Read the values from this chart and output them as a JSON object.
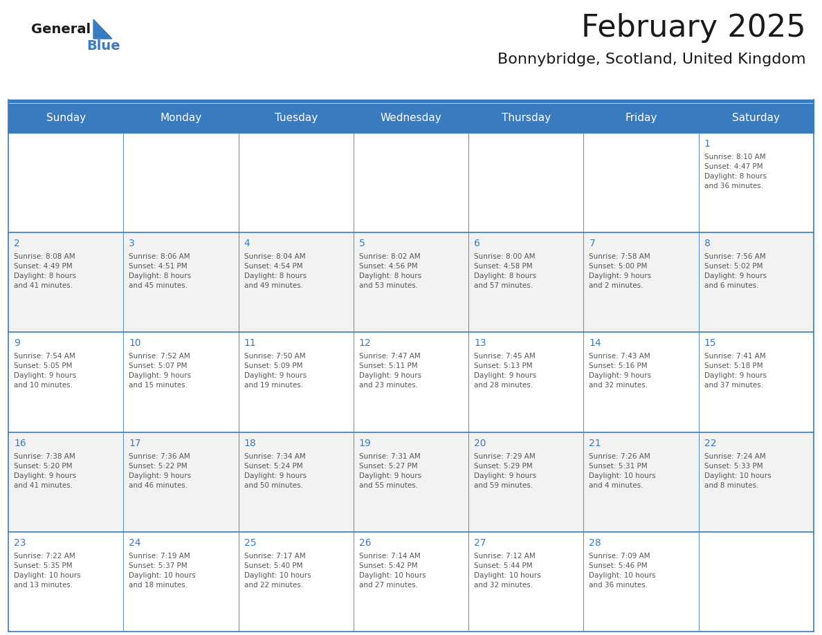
{
  "title": "February 2025",
  "subtitle": "Bonnybridge, Scotland, United Kingdom",
  "header_bg": "#3a7abf",
  "header_text": "#FFFFFF",
  "header_font_size": 11,
  "title_font_size": 32,
  "subtitle_font_size": 16,
  "day_num_color": "#3a7abf",
  "cell_text_color": "#555555",
  "cell_text_size": 7.5,
  "day_num_size": 10,
  "grid_line_color": "#3a7abf",
  "row_bg_odd": "#F2F2F2",
  "row_bg_even": "#FFFFFF",
  "logo_color_general": "#1a1a1a",
  "logo_color_blue": "#3a7abf",
  "days_of_week": [
    "Sunday",
    "Monday",
    "Tuesday",
    "Wednesday",
    "Thursday",
    "Friday",
    "Saturday"
  ],
  "weeks": [
    [
      {
        "day": null,
        "info": ""
      },
      {
        "day": null,
        "info": ""
      },
      {
        "day": null,
        "info": ""
      },
      {
        "day": null,
        "info": ""
      },
      {
        "day": null,
        "info": ""
      },
      {
        "day": null,
        "info": ""
      },
      {
        "day": 1,
        "info": "Sunrise: 8:10 AM\nSunset: 4:47 PM\nDaylight: 8 hours\nand 36 minutes."
      }
    ],
    [
      {
        "day": 2,
        "info": "Sunrise: 8:08 AM\nSunset: 4:49 PM\nDaylight: 8 hours\nand 41 minutes."
      },
      {
        "day": 3,
        "info": "Sunrise: 8:06 AM\nSunset: 4:51 PM\nDaylight: 8 hours\nand 45 minutes."
      },
      {
        "day": 4,
        "info": "Sunrise: 8:04 AM\nSunset: 4:54 PM\nDaylight: 8 hours\nand 49 minutes."
      },
      {
        "day": 5,
        "info": "Sunrise: 8:02 AM\nSunset: 4:56 PM\nDaylight: 8 hours\nand 53 minutes."
      },
      {
        "day": 6,
        "info": "Sunrise: 8:00 AM\nSunset: 4:58 PM\nDaylight: 8 hours\nand 57 minutes."
      },
      {
        "day": 7,
        "info": "Sunrise: 7:58 AM\nSunset: 5:00 PM\nDaylight: 9 hours\nand 2 minutes."
      },
      {
        "day": 8,
        "info": "Sunrise: 7:56 AM\nSunset: 5:02 PM\nDaylight: 9 hours\nand 6 minutes."
      }
    ],
    [
      {
        "day": 9,
        "info": "Sunrise: 7:54 AM\nSunset: 5:05 PM\nDaylight: 9 hours\nand 10 minutes."
      },
      {
        "day": 10,
        "info": "Sunrise: 7:52 AM\nSunset: 5:07 PM\nDaylight: 9 hours\nand 15 minutes."
      },
      {
        "day": 11,
        "info": "Sunrise: 7:50 AM\nSunset: 5:09 PM\nDaylight: 9 hours\nand 19 minutes."
      },
      {
        "day": 12,
        "info": "Sunrise: 7:47 AM\nSunset: 5:11 PM\nDaylight: 9 hours\nand 23 minutes."
      },
      {
        "day": 13,
        "info": "Sunrise: 7:45 AM\nSunset: 5:13 PM\nDaylight: 9 hours\nand 28 minutes."
      },
      {
        "day": 14,
        "info": "Sunrise: 7:43 AM\nSunset: 5:16 PM\nDaylight: 9 hours\nand 32 minutes."
      },
      {
        "day": 15,
        "info": "Sunrise: 7:41 AM\nSunset: 5:18 PM\nDaylight: 9 hours\nand 37 minutes."
      }
    ],
    [
      {
        "day": 16,
        "info": "Sunrise: 7:38 AM\nSunset: 5:20 PM\nDaylight: 9 hours\nand 41 minutes."
      },
      {
        "day": 17,
        "info": "Sunrise: 7:36 AM\nSunset: 5:22 PM\nDaylight: 9 hours\nand 46 minutes."
      },
      {
        "day": 18,
        "info": "Sunrise: 7:34 AM\nSunset: 5:24 PM\nDaylight: 9 hours\nand 50 minutes."
      },
      {
        "day": 19,
        "info": "Sunrise: 7:31 AM\nSunset: 5:27 PM\nDaylight: 9 hours\nand 55 minutes."
      },
      {
        "day": 20,
        "info": "Sunrise: 7:29 AM\nSunset: 5:29 PM\nDaylight: 9 hours\nand 59 minutes."
      },
      {
        "day": 21,
        "info": "Sunrise: 7:26 AM\nSunset: 5:31 PM\nDaylight: 10 hours\nand 4 minutes."
      },
      {
        "day": 22,
        "info": "Sunrise: 7:24 AM\nSunset: 5:33 PM\nDaylight: 10 hours\nand 8 minutes."
      }
    ],
    [
      {
        "day": 23,
        "info": "Sunrise: 7:22 AM\nSunset: 5:35 PM\nDaylight: 10 hours\nand 13 minutes."
      },
      {
        "day": 24,
        "info": "Sunrise: 7:19 AM\nSunset: 5:37 PM\nDaylight: 10 hours\nand 18 minutes."
      },
      {
        "day": 25,
        "info": "Sunrise: 7:17 AM\nSunset: 5:40 PM\nDaylight: 10 hours\nand 22 minutes."
      },
      {
        "day": 26,
        "info": "Sunrise: 7:14 AM\nSunset: 5:42 PM\nDaylight: 10 hours\nand 27 minutes."
      },
      {
        "day": 27,
        "info": "Sunrise: 7:12 AM\nSunset: 5:44 PM\nDaylight: 10 hours\nand 32 minutes."
      },
      {
        "day": 28,
        "info": "Sunrise: 7:09 AM\nSunset: 5:46 PM\nDaylight: 10 hours\nand 36 minutes."
      },
      {
        "day": null,
        "info": ""
      }
    ]
  ]
}
